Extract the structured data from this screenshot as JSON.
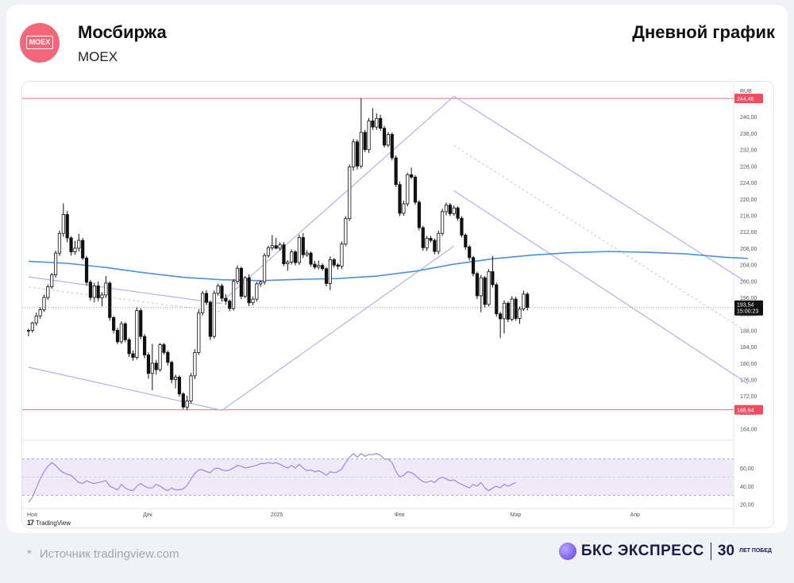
{
  "header": {
    "logo_text": "MOEX",
    "company": "Мосбиржа",
    "ticker": "MOEX",
    "chart_title": "Дневной график"
  },
  "footer": {
    "source_star": "*",
    "source": "Источник tradingview.com",
    "brand": "БКС ЭКСПРЕСС",
    "brand_30": "30",
    "brand_years": "ЛЕТ ПОБЕД"
  },
  "tradingview_label": "TradingView",
  "colors": {
    "up": "#ffffff",
    "down": "#111111",
    "wick": "#111111",
    "ma": "#4a90e2",
    "channel": "#b7aee0",
    "level": "#f26d7d",
    "rsi_fill": "#efeaf8",
    "rsi_line": "#9b8ad8",
    "price_tag": "#111111",
    "level_tag": "#f04b5e"
  },
  "chart_data": {
    "type": "candlestick",
    "currency": "RUB",
    "price_axis": {
      "range": [
        162,
        247
      ],
      "ticks": [
        "240,00",
        "236,00",
        "232,00",
        "228,00",
        "224,00",
        "220,00",
        "216,00",
        "212,00",
        "208,00",
        "204,00",
        "200,00",
        "196,00",
        "192,00",
        "188,00",
        "184,00",
        "180,00",
        "176,00",
        "172,00",
        "168,00",
        "164,00"
      ],
      "tick_values": [
        240,
        236,
        232,
        228,
        224,
        220,
        216,
        212,
        208,
        204,
        200,
        196,
        192,
        188,
        184,
        180,
        176,
        172,
        168,
        164
      ]
    },
    "time_axis": {
      "labels": [
        "Ноя",
        "Дек",
        "2025",
        "Фев",
        "Мар",
        "Апр"
      ],
      "label_index": [
        0,
        30,
        63,
        95,
        125,
        156
      ]
    },
    "levels": [
      {
        "value": 244.46,
        "label": "244,46"
      },
      {
        "value": 168.64,
        "label": "168,64"
      }
    ],
    "last_price": {
      "value": 193.54,
      "label": "193,54",
      "timer": "15:00:23"
    },
    "candles": [
      [
        187.9,
        188.4,
        186.5,
        188.0
      ],
      [
        188.0,
        190.1,
        187.4,
        189.8
      ],
      [
        189.8,
        192.3,
        189.1,
        191.5
      ],
      [
        191.5,
        193.6,
        190.8,
        193.0
      ],
      [
        193.0,
        196.7,
        192.5,
        196.0
      ],
      [
        196.0,
        199.2,
        195.4,
        198.6
      ],
      [
        198.6,
        202.0,
        198.1,
        201.5
      ],
      [
        201.5,
        207.4,
        200.8,
        206.8
      ],
      [
        206.8,
        212.3,
        206.1,
        211.6
      ],
      [
        211.6,
        218.9,
        210.8,
        216.2
      ],
      [
        216.2,
        217.1,
        209.4,
        210.5
      ],
      [
        210.5,
        210.9,
        206.2,
        207.1
      ],
      [
        207.1,
        209.8,
        206.4,
        208.0
      ],
      [
        208.0,
        211.5,
        207.2,
        209.9
      ],
      [
        209.9,
        210.5,
        205.1,
        205.6
      ],
      [
        205.6,
        206.1,
        198.9,
        199.7
      ],
      [
        199.7,
        200.3,
        195.2,
        196.0
      ],
      [
        196.0,
        199.6,
        194.8,
        198.8
      ],
      [
        198.8,
        199.9,
        195.1,
        195.9
      ],
      [
        195.9,
        197.3,
        193.8,
        196.6
      ],
      [
        196.6,
        201.2,
        195.9,
        199.5
      ],
      [
        199.5,
        199.9,
        190.3,
        191.1
      ],
      [
        191.1,
        191.5,
        187.2,
        188.0
      ],
      [
        188.0,
        188.6,
        184.6,
        185.2
      ],
      [
        185.2,
        190.2,
        184.7,
        189.6
      ],
      [
        189.6,
        190.0,
        185.1,
        185.7
      ],
      [
        185.7,
        186.2,
        181.5,
        182.3
      ],
      [
        182.3,
        183.1,
        180.6,
        181.4
      ],
      [
        181.4,
        193.7,
        180.9,
        192.8
      ],
      [
        192.8,
        193.4,
        185.8,
        186.5
      ],
      [
        186.5,
        187.1,
        181.2,
        182.0
      ],
      [
        182.0,
        182.6,
        176.2,
        177.5
      ],
      [
        177.5,
        184.7,
        173.4,
        180.0
      ],
      [
        180.0,
        180.8,
        177.2,
        178.4
      ],
      [
        178.4,
        184.9,
        177.9,
        184.5
      ],
      [
        184.5,
        184.9,
        182.1,
        182.6
      ],
      [
        182.6,
        183.1,
        179.4,
        180.2
      ],
      [
        180.2,
        180.6,
        175.1,
        176.0
      ],
      [
        176.0,
        177.2,
        173.9,
        176.6
      ],
      [
        176.6,
        177.0,
        171.8,
        172.5
      ],
      [
        172.5,
        172.9,
        168.8,
        169.3
      ],
      [
        169.3,
        172.1,
        168.6,
        170.8
      ],
      [
        170.8,
        177.6,
        170.2,
        176.9
      ],
      [
        176.9,
        183.4,
        176.1,
        182.6
      ],
      [
        182.6,
        193.1,
        182.0,
        192.3
      ],
      [
        192.3,
        197.6,
        191.6,
        197.0
      ],
      [
        197.0,
        197.8,
        194.1,
        194.8
      ],
      [
        194.8,
        195.3,
        185.6,
        186.5
      ],
      [
        186.5,
        197.7,
        186.0,
        197.0
      ],
      [
        197.0,
        199.4,
        196.4,
        198.8
      ],
      [
        198.8,
        199.3,
        195.0,
        195.8
      ],
      [
        195.8,
        196.8,
        194.2,
        195.1
      ],
      [
        195.1,
        195.5,
        192.6,
        193.3
      ],
      [
        193.3,
        200.5,
        192.8,
        199.9
      ],
      [
        199.9,
        203.8,
        199.2,
        203.1
      ],
      [
        203.1,
        203.5,
        195.6,
        196.3
      ],
      [
        196.3,
        201.2,
        195.8,
        200.8
      ],
      [
        200.8,
        201.6,
        193.9,
        194.7
      ],
      [
        194.7,
        196.2,
        194.1,
        195.6
      ],
      [
        195.6,
        199.8,
        195.0,
        199.3
      ],
      [
        199.3,
        200.1,
        198.6,
        199.8
      ],
      [
        199.8,
        206.8,
        199.1,
        206.2
      ],
      [
        206.2,
        208.6,
        205.7,
        208.1
      ],
      [
        208.1,
        211.2,
        207.5,
        208.6
      ],
      [
        208.6,
        210.5,
        207.7,
        208.0
      ],
      [
        208.0,
        209.4,
        207.4,
        208.8
      ],
      [
        208.8,
        209.5,
        203.6,
        204.2
      ],
      [
        204.2,
        205.1,
        202.5,
        204.6
      ],
      [
        204.6,
        207.7,
        204.0,
        207.1
      ],
      [
        207.1,
        207.5,
        203.8,
        204.5
      ],
      [
        204.5,
        211.3,
        203.9,
        210.6
      ],
      [
        210.6,
        211.7,
        205.6,
        206.4
      ],
      [
        206.4,
        207.5,
        205.9,
        206.8
      ],
      [
        206.8,
        207.2,
        203.5,
        204.1
      ],
      [
        204.1,
        204.9,
        202.9,
        203.4
      ],
      [
        203.4,
        205.0,
        202.8,
        203.8
      ],
      [
        203.8,
        204.3,
        202.5,
        203.0
      ],
      [
        203.0,
        203.4,
        198.7,
        199.4
      ],
      [
        199.4,
        206.0,
        197.8,
        205.2
      ],
      [
        205.2,
        205.6,
        203.3,
        203.9
      ],
      [
        203.9,
        204.3,
        202.8,
        203.6
      ],
      [
        203.6,
        209.6,
        202.9,
        209.0
      ],
      [
        209.0,
        215.8,
        208.5,
        215.2
      ],
      [
        215.2,
        228.4,
        214.6,
        227.8
      ],
      [
        227.8,
        234.6,
        226.9,
        233.9
      ],
      [
        233.9,
        234.5,
        227.2,
        228.0
      ],
      [
        228.0,
        244.5,
        227.4,
        236.2
      ],
      [
        236.2,
        236.8,
        231.4,
        232.0
      ],
      [
        232.0,
        239.7,
        231.2,
        239.0
      ],
      [
        239.0,
        242.1,
        236.8,
        237.5
      ],
      [
        237.5,
        240.8,
        236.8,
        239.6
      ],
      [
        239.6,
        240.5,
        236.6,
        237.2
      ],
      [
        237.2,
        237.8,
        232.5,
        233.1
      ],
      [
        233.1,
        236.3,
        232.6,
        235.7
      ],
      [
        235.7,
        236.2,
        229.4,
        230.0
      ],
      [
        230.0,
        230.6,
        222.9,
        223.5
      ],
      [
        223.5,
        224.2,
        215.8,
        216.5
      ],
      [
        216.5,
        219.6,
        215.9,
        218.8
      ],
      [
        218.8,
        226.4,
        218.2,
        225.9
      ],
      [
        225.9,
        227.6,
        224.8,
        225.3
      ],
      [
        225.3,
        225.8,
        218.6,
        219.2
      ],
      [
        219.2,
        219.7,
        212.3,
        213.0
      ],
      [
        213.0,
        213.5,
        207.4,
        208.1
      ],
      [
        208.1,
        211.0,
        207.3,
        210.4
      ],
      [
        210.4,
        211.0,
        209.4,
        209.9
      ],
      [
        209.9,
        210.4,
        206.5,
        207.2
      ],
      [
        207.2,
        212.3,
        206.5,
        211.6
      ],
      [
        211.6,
        217.6,
        211.0,
        216.9
      ],
      [
        216.9,
        219.1,
        216.0,
        218.5
      ],
      [
        218.5,
        219.0,
        215.8,
        216.4
      ],
      [
        216.4,
        218.4,
        215.9,
        217.8
      ],
      [
        217.8,
        218.2,
        214.7,
        215.3
      ],
      [
        215.3,
        215.8,
        210.6,
        211.2
      ],
      [
        211.2,
        211.6,
        207.6,
        208.3
      ],
      [
        208.3,
        208.8,
        205.0,
        205.7
      ],
      [
        205.7,
        206.1,
        201.1,
        201.8
      ],
      [
        201.8,
        202.3,
        195.6,
        196.4
      ],
      [
        196.4,
        201.5,
        192.4,
        200.8
      ],
      [
        200.8,
        201.2,
        193.5,
        194.3
      ],
      [
        194.3,
        202.9,
        193.8,
        202.3
      ],
      [
        202.3,
        206.1,
        198.4,
        199.1
      ],
      [
        199.1,
        199.6,
        191.3,
        192.0
      ],
      [
        192.0,
        192.5,
        186.1,
        190.8
      ],
      [
        190.8,
        195.3,
        187.2,
        194.6
      ],
      [
        194.6,
        195.0,
        190.0,
        190.7
      ],
      [
        190.7,
        196.3,
        190.2,
        195.6
      ],
      [
        195.6,
        196.2,
        190.3,
        190.9
      ],
      [
        190.9,
        193.8,
        189.6,
        193.2
      ],
      [
        193.2,
        197.7,
        192.7,
        196.8
      ],
      [
        196.8,
        197.3,
        192.8,
        193.54
      ]
    ],
    "ma_line": [
      [
        0,
        204.8
      ],
      [
        10,
        204.3
      ],
      [
        20,
        203.3
      ],
      [
        30,
        202.0
      ],
      [
        40,
        200.9
      ],
      [
        50,
        200.3
      ],
      [
        60,
        200.1
      ],
      [
        70,
        200.4
      ],
      [
        80,
        200.6
      ],
      [
        90,
        201.2
      ],
      [
        100,
        202.4
      ],
      [
        110,
        204.1
      ],
      [
        120,
        205.4
      ],
      [
        130,
        206.3
      ],
      [
        140,
        206.9
      ],
      [
        150,
        207.2
      ],
      [
        160,
        207.0
      ],
      [
        170,
        206.6
      ],
      [
        180,
        205.8
      ],
      [
        186,
        205.5
      ]
    ],
    "channel_lines": [
      [
        [
          0,
          201.0
        ],
        [
          50,
          194.5
        ]
      ],
      [
        [
          0,
          179.0
        ],
        [
          50,
          168.5
        ]
      ],
      [
        [
          50,
          168.5
        ],
        [
          110,
          208.5
        ]
      ],
      [
        [
          50,
          195.0
        ],
        [
          110,
          245.0
        ]
      ],
      [
        [
          110,
          245.0
        ],
        [
          186,
          199.5
        ]
      ],
      [
        [
          110,
          222.0
        ],
        [
          186,
          175.0
        ]
      ]
    ],
    "dashed_lines": [
      [
        [
          0,
          198.5
        ],
        [
          50,
          192.5
        ]
      ],
      [
        [
          110,
          233.0
        ],
        [
          186,
          187.5
        ]
      ]
    ],
    "rsi": {
      "axis_ticks": [
        "60,00",
        "40,00",
        "20,00"
      ],
      "axis_values": [
        60,
        40,
        20
      ],
      "range": [
        18,
        82
      ],
      "band": [
        30,
        70
      ],
      "values": [
        22,
        28,
        38,
        48,
        56,
        62,
        66,
        63,
        58,
        55,
        53,
        52,
        48,
        44,
        43,
        46,
        44,
        43,
        44,
        45,
        46,
        40,
        38,
        36,
        42,
        38,
        36,
        35,
        40,
        43,
        40,
        38,
        38,
        42,
        40,
        37,
        35,
        38,
        36,
        36,
        37,
        41,
        48,
        54,
        58,
        58,
        56,
        55,
        59,
        60,
        58,
        57,
        58,
        60,
        63,
        62,
        60,
        61,
        62,
        63,
        65,
        65,
        66,
        65,
        66,
        64,
        62,
        60,
        63,
        60,
        64,
        60,
        57,
        58,
        56,
        57,
        55,
        52,
        56,
        55,
        56,
        59,
        66,
        72,
        76,
        72,
        76,
        73,
        75,
        75,
        76,
        74,
        70,
        70,
        66,
        56,
        50,
        52,
        56,
        55,
        52,
        48,
        45,
        44,
        46,
        44,
        48,
        50,
        48,
        46,
        47,
        44,
        42,
        40,
        38,
        42,
        40,
        44,
        38,
        35,
        38,
        40,
        38,
        42,
        40,
        42,
        44
      ]
    }
  }
}
